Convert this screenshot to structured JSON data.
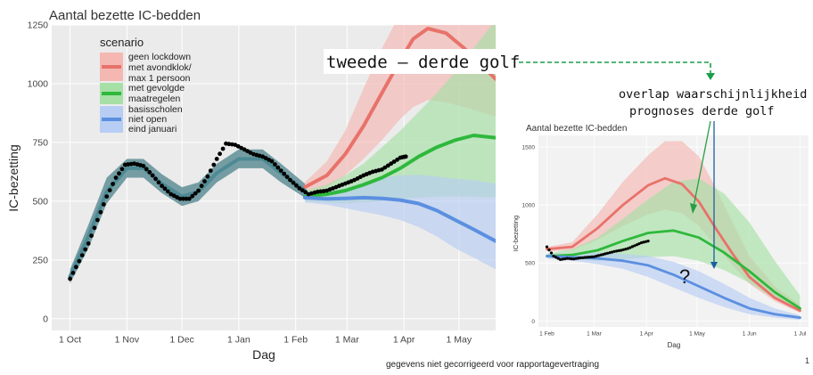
{
  "chart_data": [
    {
      "type": "line",
      "title": "Aantal bezette IC-bedden",
      "xlabel": "Dag",
      "ylabel": "IC-bezetting",
      "ylim": [
        0,
        1250
      ],
      "x_ticks": [
        "1 Oct",
        "1 Nov",
        "1 Dec",
        "1 Jan",
        "1 Feb",
        "1 Mar",
        "1 Apr",
        "1 May"
      ],
      "y_ticks": [
        "0",
        "250",
        "500",
        "750",
        "1000",
        "1250"
      ],
      "grid": true,
      "legend_position": "top-left",
      "legend_title": "scenario",
      "colors": {
        "red": "#e8726a",
        "green": "#2fb83c",
        "blue": "#5b8fe0",
        "teal": "#4d8a95",
        "observed": "#000000"
      },
      "legend": [
        {
          "color": "red",
          "lines": [
            "geen lockdown",
            "met avondklok/",
            "max 1 persoon"
          ]
        },
        {
          "color": "green",
          "lines": [
            "met gevolgde",
            "maatregelen"
          ]
        },
        {
          "color": "blue",
          "lines": [
            "basisscholen",
            "niet open",
            "eind januari"
          ]
        }
      ],
      "series": [
        {
          "name": "geen lockdown met avondklok/ max 1 persoon",
          "color": "red",
          "x": [
            128,
            140,
            150,
            160,
            170,
            180,
            187,
            195,
            205,
            215,
            232
          ],
          "y": [
            560,
            610,
            700,
            820,
            960,
            1100,
            1190,
            1235,
            1215,
            1150,
            1020
          ],
          "lower": [
            540,
            560,
            610,
            680,
            760,
            850,
            900,
            930,
            920,
            900,
            860
          ],
          "upper": [
            580,
            670,
            800,
            980,
            1150,
            1300,
            1300,
            1300,
            1300,
            1300,
            1300
          ]
        },
        {
          "name": "met gevolgde maatregelen",
          "color": "green",
          "x": [
            128,
            140,
            150,
            160,
            170,
            180,
            190,
            200,
            210,
            220,
            232
          ],
          "y": [
            520,
            530,
            545,
            570,
            600,
            640,
            690,
            730,
            760,
            780,
            770
          ],
          "lower": [
            500,
            495,
            490,
            495,
            500,
            510,
            515,
            520,
            520,
            520,
            515
          ],
          "upper": [
            545,
            570,
            610,
            660,
            730,
            800,
            880,
            960,
            1050,
            1150,
            1270
          ]
        },
        {
          "name": "basisscholen niet open eind januari",
          "color": "blue",
          "x": [
            128,
            140,
            150,
            160,
            170,
            180,
            190,
            200,
            210,
            220,
            232
          ],
          "y": [
            515,
            510,
            512,
            515,
            512,
            505,
            490,
            460,
            420,
            380,
            330
          ],
          "lower": [
            495,
            485,
            470,
            455,
            440,
            420,
            390,
            350,
            300,
            260,
            210
          ],
          "upper": [
            535,
            540,
            555,
            580,
            600,
            610,
            612,
            605,
            595,
            590,
            575
          ]
        },
        {
          "name": "model",
          "color": "teal",
          "x": [
            0,
            10,
            20,
            31,
            40,
            50,
            61,
            70,
            80,
            92,
            105,
            115,
            128
          ],
          "y": [
            180,
            350,
            540,
            640,
            640,
            575,
            520,
            540,
            620,
            680,
            680,
            620,
            545
          ],
          "lower": [
            150,
            300,
            490,
            600,
            600,
            535,
            480,
            500,
            580,
            640,
            640,
            580,
            515
          ],
          "upper": [
            210,
            400,
            600,
            680,
            680,
            615,
            560,
            580,
            660,
            720,
            720,
            660,
            575
          ]
        }
      ],
      "observed": {
        "name": "observed",
        "color": "observed",
        "x": [
          0,
          5,
          10,
          15,
          20,
          25,
          30,
          35,
          40,
          45,
          50,
          55,
          60,
          65,
          70,
          75,
          80,
          85,
          90,
          95,
          100,
          105,
          110,
          115,
          120,
          125,
          130,
          135,
          140,
          145,
          150,
          155,
          160,
          165,
          170,
          175,
          180,
          183
        ],
        "y": [
          170,
          245,
          320,
          420,
          520,
          600,
          655,
          660,
          650,
          610,
          565,
          530,
          510,
          510,
          545,
          605,
          680,
          745,
          740,
          720,
          700,
          690,
          670,
          630,
          590,
          555,
          530,
          540,
          545,
          560,
          575,
          590,
          610,
          625,
          635,
          660,
          685,
          690
        ]
      }
    },
    {
      "type": "line",
      "title": "Aantal bezette IC-bedden",
      "xlabel": "Dag",
      "ylabel": "IC-bezetting",
      "ylim": [
        0,
        1600
      ],
      "x_ticks": [
        "1 Feb",
        "1 Mar",
        "1 Apr",
        "1 May",
        "1 Jun",
        "1 Jul"
      ],
      "y_ticks": [
        "0",
        "500",
        "1000",
        "1500"
      ],
      "grid": true,
      "series": [
        {
          "name": "geen lockdown met avondklok/ max 1 persoon",
          "color": "red",
          "x": [
            0,
            15,
            30,
            45,
            60,
            70,
            80,
            90,
            100,
            110,
            120,
            135,
            150
          ],
          "y": [
            620,
            640,
            800,
            1000,
            1170,
            1230,
            1180,
            1030,
            800,
            580,
            380,
            200,
            90
          ],
          "lower": [
            600,
            610,
            700,
            820,
            920,
            960,
            930,
            820,
            650,
            480,
            320,
            170,
            70
          ],
          "upper": [
            640,
            680,
            920,
            1200,
            1430,
            1550,
            1550,
            1420,
            1150,
            850,
            560,
            300,
            140
          ]
        },
        {
          "name": "met gevolgde maatregelen",
          "color": "green",
          "x": [
            0,
            15,
            30,
            45,
            60,
            75,
            90,
            105,
            120,
            135,
            150
          ],
          "y": [
            560,
            570,
            610,
            690,
            760,
            780,
            720,
            590,
            430,
            250,
            110
          ],
          "lower": [
            540,
            530,
            520,
            530,
            550,
            560,
            520,
            440,
            330,
            190,
            80
          ],
          "upper": [
            580,
            620,
            720,
            880,
            1050,
            1200,
            1230,
            1100,
            850,
            520,
            220
          ]
        },
        {
          "name": "basisscholen niet open eind januari",
          "color": "blue",
          "x": [
            0,
            15,
            30,
            45,
            60,
            75,
            90,
            105,
            120,
            135,
            150
          ],
          "y": [
            560,
            550,
            540,
            520,
            480,
            400,
            300,
            200,
            110,
            60,
            30
          ],
          "lower": [
            540,
            520,
            490,
            450,
            380,
            290,
            200,
            120,
            60,
            30,
            10
          ],
          "upper": [
            580,
            580,
            590,
            580,
            560,
            510,
            430,
            320,
            200,
            110,
            50
          ]
        }
      ],
      "observed": {
        "name": "observed",
        "color": "observed",
        "x": [
          0,
          4,
          8,
          12,
          16,
          20,
          24,
          28,
          32,
          36,
          40,
          44,
          48,
          52,
          56,
          60
        ],
        "y": [
          640,
          560,
          530,
          540,
          535,
          545,
          550,
          555,
          570,
          585,
          600,
          610,
          625,
          650,
          675,
          690
        ]
      }
    }
  ],
  "annotations": {
    "wave_label": "tweede – derde golf",
    "overlap_line1": "overlap waarschijnlijkheid",
    "overlap_line2": "prognoses derde golf",
    "question": "?",
    "footnote": "gegevens niet gecorrigeerd voor rapportagevertraging",
    "page_number": "1"
  }
}
